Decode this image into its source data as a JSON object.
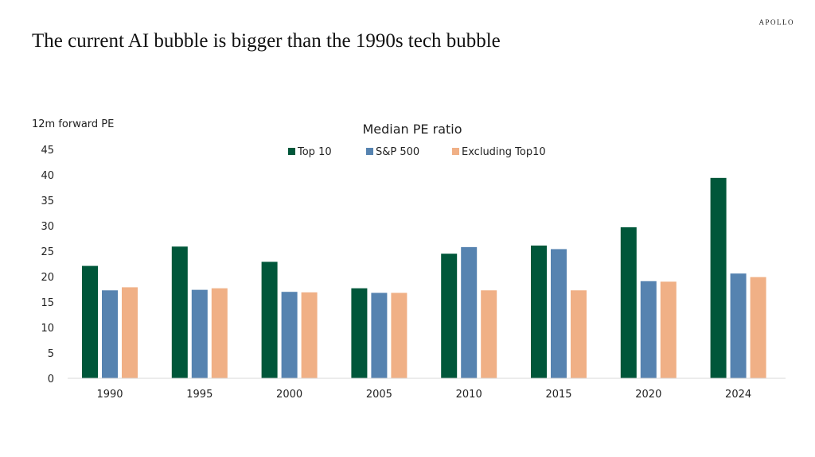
{
  "header": {
    "title": "The current AI bubble is bigger than the 1990s tech bubble",
    "brand": "APOLLO"
  },
  "chart_data": {
    "type": "bar",
    "title": "Median PE ratio",
    "ylabel": "12m forward PE",
    "xlabel": "",
    "ylim": [
      0,
      45
    ],
    "yticks": [
      0,
      5,
      10,
      15,
      20,
      25,
      30,
      35,
      40,
      45
    ],
    "grid": false,
    "legend_position": "top-center",
    "categories": [
      "1990",
      "1995",
      "2000",
      "2005",
      "2010",
      "2015",
      "2020",
      "2024"
    ],
    "series": [
      {
        "name": "Top 10",
        "color": "#00573A",
        "values": [
          22.1,
          25.9,
          22.9,
          17.7,
          24.5,
          26.1,
          29.7,
          39.4
        ]
      },
      {
        "name": "S&P 500",
        "color": "#5683B0",
        "values": [
          17.3,
          17.4,
          17.0,
          16.8,
          25.8,
          25.4,
          19.1,
          20.6
        ]
      },
      {
        "name": "Excluding Top10",
        "color": "#F0B086",
        "values": [
          17.9,
          17.7,
          16.9,
          16.8,
          17.3,
          17.3,
          19.0,
          19.9
        ]
      }
    ]
  }
}
